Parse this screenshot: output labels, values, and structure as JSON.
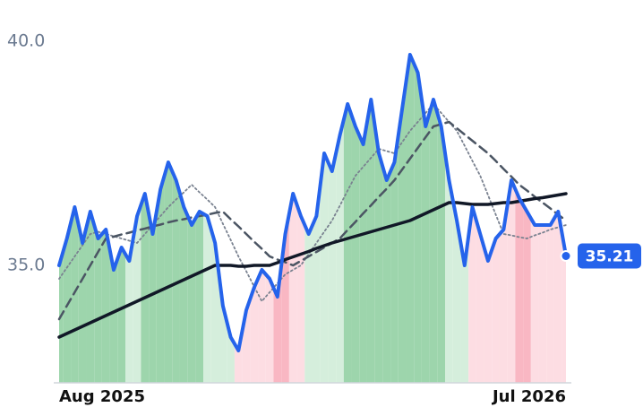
{
  "chart_data": {
    "type": "line",
    "categories": [
      "Aug 2025",
      null,
      null,
      null,
      null,
      null,
      null,
      null,
      null,
      null,
      null,
      null,
      null,
      null,
      null,
      null,
      null,
      null,
      null,
      null,
      null,
      null,
      null,
      null,
      null,
      null,
      null,
      null,
      null,
      null,
      null,
      null,
      null,
      null,
      null,
      null,
      null,
      null,
      null,
      null,
      null,
      null,
      null,
      null,
      null,
      null,
      null,
      null,
      null,
      null,
      null,
      null,
      null,
      null,
      null,
      null,
      null,
      null,
      null,
      null,
      null,
      null,
      null,
      null,
      null,
      "Jul 2026"
    ],
    "ylim": [
      32.38,
      40.92
    ],
    "yticks": [
      {
        "value": 35,
        "label": "35.0"
      },
      {
        "value": 40,
        "label": "40.0"
      }
    ],
    "grid": false,
    "zone_colors": [
      "#9dd5ac",
      "#9dd5ac",
      "#9dd5ac",
      "#9dd5ac",
      "#9dd5ac",
      "#9dd5ac",
      "#9dd5ac",
      "#9dd5ac",
      "#9dd5ac",
      "#d5eedc",
      "#d5eedc",
      "#9dd5ac",
      "#9dd5ac",
      "#9dd5ac",
      "#9dd5ac",
      "#9dd5ac",
      "#9dd5ac",
      "#9dd5ac",
      "#9dd5ac",
      "#d5eedc",
      "#d5eedc",
      "#d5eedc",
      "#d5eedc",
      "#fddde3",
      "#fddde3",
      "#fddde3",
      "#fddde3",
      "#fddde3",
      "#f9b7c3",
      "#f9b7c3",
      "#fddde3",
      "#fddde3",
      "#d5eedc",
      "#d5eedc",
      "#d5eedc",
      "#d5eedc",
      "#d5eedc",
      "#9dd5ac",
      "#9dd5ac",
      "#9dd5ac",
      "#9dd5ac",
      "#9dd5ac",
      "#9dd5ac",
      "#9dd5ac",
      "#9dd5ac",
      "#9dd5ac",
      "#9dd5ac",
      "#9dd5ac",
      "#9dd5ac",
      "#9dd5ac",
      "#d5eedc",
      "#d5eedc",
      "#d5eedc",
      "#fddde3",
      "#fddde3",
      "#fddde3",
      "#fddde3",
      "#fddde3",
      "#fddde3",
      "#f9b7c3",
      "#f9b7c3",
      "#fddde3",
      "#fddde3",
      "#fddde3",
      "#fddde3",
      "#fddde3"
    ],
    "series": [
      {
        "color": "#2563eb",
        "width": 4,
        "dash": "solid",
        "values": [
          35.0,
          35.6,
          36.3,
          35.5,
          36.2,
          35.6,
          35.8,
          34.9,
          35.4,
          35.1,
          36.1,
          36.6,
          35.7,
          36.7,
          37.3,
          36.9,
          36.3,
          35.9,
          36.2,
          36.1,
          35.5,
          34.1,
          33.4,
          33.1,
          34.0,
          34.5,
          34.9,
          34.7,
          34.3,
          35.7,
          36.6,
          36.1,
          35.7,
          36.1,
          37.5,
          37.1,
          37.9,
          38.6,
          38.1,
          37.7,
          38.7,
          37.5,
          36.9,
          37.3,
          38.5,
          39.7,
          39.3,
          38.1,
          38.7,
          38.1,
          36.9,
          36.0,
          35.0,
          36.3,
          35.7,
          35.1,
          35.6,
          35.8,
          36.9,
          36.5,
          36.2,
          35.9,
          35.9,
          35.9,
          36.2,
          35.21
        ]
      },
      {
        "color": "#7a8290",
        "width": 1.8,
        "dash": "dotted",
        "values": [
          34.7,
          34.95,
          35.2,
          35.45,
          35.7,
          35.75,
          35.7,
          35.65,
          35.6,
          35.55,
          35.5,
          35.7,
          35.9,
          36.1,
          36.3,
          36.47,
          36.63,
          36.8,
          36.63,
          36.47,
          36.3,
          35.93,
          35.57,
          35.2,
          34.87,
          34.53,
          34.2,
          34.4,
          34.6,
          34.8,
          34.9,
          35.0,
          35.25,
          35.5,
          35.75,
          36.0,
          36.33,
          36.67,
          37.0,
          37.2,
          37.4,
          37.6,
          37.55,
          37.5,
          37.75,
          38.0,
          38.2,
          38.4,
          38.6,
          38.4,
          38.2,
          38.0,
          37.67,
          37.33,
          37.0,
          36.57,
          36.13,
          35.7,
          35.67,
          35.63,
          35.6,
          35.67,
          35.73,
          35.8,
          35.85,
          35.9
        ]
      },
      {
        "color": "#4b5563",
        "width": 2.5,
        "dash": "dashed",
        "values": [
          33.8,
          34.1,
          34.4,
          34.7,
          35.0,
          35.3,
          35.6,
          35.64,
          35.69,
          35.73,
          35.78,
          35.82,
          35.87,
          35.91,
          35.96,
          36.0,
          36.03,
          36.07,
          36.1,
          36.13,
          36.17,
          36.2,
          36.03,
          35.87,
          35.7,
          35.53,
          35.37,
          35.2,
          35.13,
          35.07,
          35.0,
          35.1,
          35.2,
          35.3,
          35.4,
          35.5,
          35.6,
          35.79,
          35.97,
          36.16,
          36.34,
          36.53,
          36.71,
          36.9,
          37.14,
          37.38,
          37.62,
          37.86,
          38.1,
          38.15,
          38.2,
          38.06,
          37.92,
          37.78,
          37.64,
          37.5,
          37.33,
          37.15,
          36.98,
          36.8,
          36.67,
          36.53,
          36.4,
          36.27,
          36.13,
          36.0
        ]
      },
      {
        "color": "#111827",
        "width": 3.5,
        "dash": "solid",
        "values": [
          33.4,
          33.48,
          33.56,
          33.64,
          33.72,
          33.8,
          33.88,
          33.96,
          34.04,
          34.12,
          34.2,
          34.28,
          34.36,
          34.44,
          34.52,
          34.6,
          34.68,
          34.76,
          34.84,
          34.92,
          35.0,
          35.0,
          35.0,
          34.98,
          34.98,
          35.0,
          35.0,
          35.0,
          35.06,
          35.13,
          35.19,
          35.25,
          35.31,
          35.38,
          35.44,
          35.5,
          35.55,
          35.6,
          35.65,
          35.7,
          35.75,
          35.8,
          35.85,
          35.9,
          35.95,
          36.0,
          36.08,
          36.16,
          36.24,
          36.32,
          36.4,
          36.4,
          36.38,
          36.36,
          36.36,
          36.36,
          36.38,
          36.4,
          36.4,
          36.43,
          36.46,
          36.49,
          36.51,
          36.54,
          36.57,
          36.6
        ]
      }
    ]
  }
}
